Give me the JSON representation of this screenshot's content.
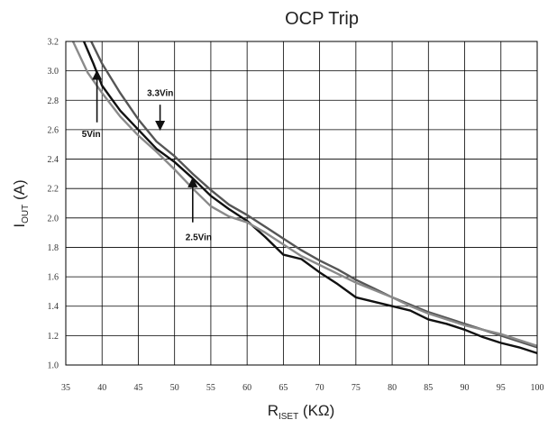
{
  "chart_data": {
    "type": "line",
    "title": "OCP Trip",
    "xlabel": {
      "main": "R",
      "sub": "ISET",
      "unit": " (KΩ)"
    },
    "ylabel": {
      "main": "I",
      "sub": "OUT",
      "unit": " (A)"
    },
    "xlim": [
      35,
      100
    ],
    "ylim": [
      1.0,
      3.2
    ],
    "x_ticks": [
      35,
      40,
      45,
      50,
      55,
      60,
      65,
      70,
      75,
      80,
      85,
      90,
      95,
      100
    ],
    "y_ticks": [
      "1.0",
      "1.2",
      "1.4",
      "1.6",
      "1.8",
      "2.0",
      "2.2",
      "2.4",
      "2.6",
      "2.8",
      "3.0",
      "3.2"
    ],
    "grid": true,
    "series": [
      {
        "name": "3.3Vin",
        "color": "#555555",
        "points": [
          [
            38.5,
            3.2
          ],
          [
            40,
            3.05
          ],
          [
            42.5,
            2.85
          ],
          [
            45,
            2.67
          ],
          [
            47.5,
            2.52
          ],
          [
            50,
            2.42
          ],
          [
            52.5,
            2.3
          ],
          [
            55,
            2.19
          ],
          [
            57.5,
            2.09
          ],
          [
            60,
            2.02
          ],
          [
            62.5,
            1.94
          ],
          [
            65,
            1.86
          ],
          [
            67.5,
            1.78
          ],
          [
            70,
            1.71
          ],
          [
            72.5,
            1.65
          ],
          [
            75,
            1.58
          ],
          [
            77.5,
            1.52
          ],
          [
            80,
            1.46
          ],
          [
            82.5,
            1.41
          ],
          [
            85,
            1.36
          ],
          [
            87.5,
            1.32
          ],
          [
            90,
            1.28
          ],
          [
            92.5,
            1.24
          ],
          [
            95,
            1.2
          ],
          [
            97.5,
            1.16
          ],
          [
            100,
            1.12
          ]
        ]
      },
      {
        "name": "5Vin",
        "color": "#111111",
        "points": [
          [
            37.5,
            3.2
          ],
          [
            38.8,
            3.05
          ],
          [
            40,
            2.9
          ],
          [
            42.5,
            2.73
          ],
          [
            45,
            2.6
          ],
          [
            47.5,
            2.47
          ],
          [
            50,
            2.38
          ],
          [
            52.5,
            2.27
          ],
          [
            55,
            2.15
          ],
          [
            57.5,
            2.06
          ],
          [
            60,
            1.98
          ],
          [
            62.5,
            1.87
          ],
          [
            65,
            1.75
          ],
          [
            67.5,
            1.72
          ],
          [
            70,
            1.63
          ],
          [
            72.5,
            1.55
          ],
          [
            75,
            1.46
          ],
          [
            77.5,
            1.43
          ],
          [
            80,
            1.4
          ],
          [
            82.5,
            1.37
          ],
          [
            85,
            1.31
          ],
          [
            87.5,
            1.28
          ],
          [
            90,
            1.24
          ],
          [
            92.5,
            1.19
          ],
          [
            95,
            1.15
          ],
          [
            97.5,
            1.12
          ],
          [
            100,
            1.08
          ]
        ]
      },
      {
        "name": "2.5Vin",
        "color": "#8a8a8a",
        "points": [
          [
            36,
            3.2
          ],
          [
            38,
            2.99
          ],
          [
            40,
            2.85
          ],
          [
            42.5,
            2.69
          ],
          [
            45,
            2.56
          ],
          [
            47.5,
            2.45
          ],
          [
            50,
            2.33
          ],
          [
            52.5,
            2.2
          ],
          [
            55,
            2.08
          ],
          [
            57.5,
            2.01
          ],
          [
            60,
            1.97
          ],
          [
            62.5,
            1.9
          ],
          [
            65,
            1.82
          ],
          [
            67.5,
            1.74
          ],
          [
            70,
            1.68
          ],
          [
            72.5,
            1.62
          ],
          [
            75,
            1.56
          ],
          [
            77.5,
            1.51
          ],
          [
            80,
            1.46
          ],
          [
            82.5,
            1.4
          ],
          [
            85,
            1.35
          ],
          [
            87.5,
            1.31
          ],
          [
            90,
            1.27
          ],
          [
            92.5,
            1.24
          ],
          [
            95,
            1.21
          ],
          [
            97.5,
            1.17
          ],
          [
            100,
            1.13
          ]
        ]
      }
    ],
    "annotations": [
      {
        "label": "3.3Vin",
        "arrow_tip": [
          48,
          2.6
        ],
        "arrow_tail": [
          48,
          2.77
        ],
        "text_at": [
          46.2,
          2.83
        ]
      },
      {
        "label": "5Vin",
        "arrow_tip": [
          39.3,
          3.0
        ],
        "arrow_tail": [
          39.3,
          2.65
        ],
        "text_at": [
          37.2,
          2.55
        ]
      },
      {
        "label": "2.5Vin",
        "arrow_tip": [
          52.5,
          2.27
        ],
        "arrow_tail": [
          52.5,
          1.97
        ],
        "text_at": [
          51.5,
          1.85
        ]
      }
    ]
  }
}
